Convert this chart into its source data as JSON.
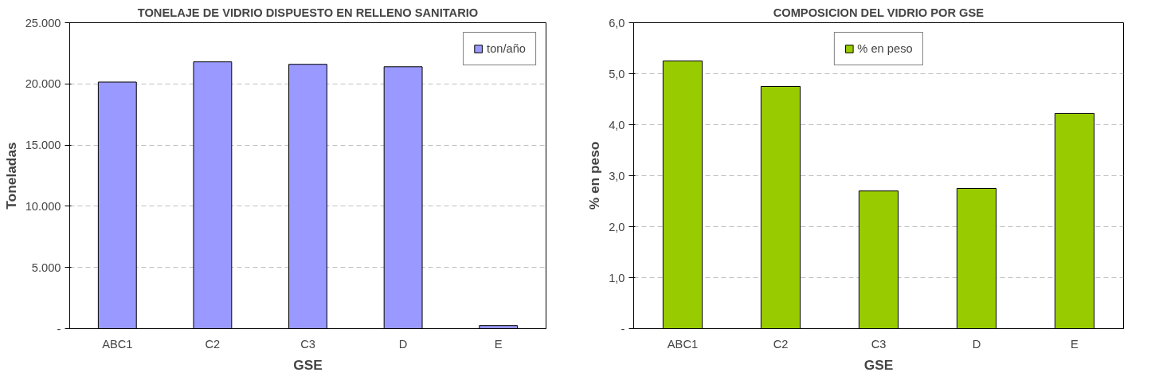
{
  "chart_data": [
    {
      "type": "bar",
      "title": "TONELAJE DE VIDRIO DISPUESTO EN RELLENO SANITARIO",
      "xlabel": "GSE",
      "ylabel": "Toneladas",
      "categories": [
        "ABC1",
        "C2",
        "C3",
        "D",
        "E"
      ],
      "series": [
        {
          "name": "ton/año",
          "color": "#9999ff",
          "values": [
            20150,
            21800,
            21600,
            21400,
            250
          ]
        }
      ],
      "ylim": [
        0,
        25000
      ],
      "yticks": [
        {
          "value": 0,
          "label": "-"
        },
        {
          "value": 5000,
          "label": "5.000"
        },
        {
          "value": 10000,
          "label": "10.000"
        },
        {
          "value": 15000,
          "label": "15.000"
        },
        {
          "value": 20000,
          "label": "20.000"
        },
        {
          "value": 25000,
          "label": "25.000"
        }
      ],
      "grid": "y",
      "legend": "top right"
    },
    {
      "type": "bar",
      "title": "COMPOSICION DEL VIDRIO POR GSE",
      "xlabel": "GSE",
      "ylabel": "% en peso",
      "categories": [
        "ABC1",
        "C2",
        "C3",
        "D",
        "E"
      ],
      "series": [
        {
          "name": "% en peso",
          "color": "#99cc00",
          "values": [
            5.25,
            4.75,
            2.7,
            2.75,
            4.22
          ]
        }
      ],
      "ylim": [
        0,
        6
      ],
      "yticks": [
        {
          "value": 0,
          "label": "-"
        },
        {
          "value": 1,
          "label": "1,0"
        },
        {
          "value": 2,
          "label": "2,0"
        },
        {
          "value": 3,
          "label": "3,0"
        },
        {
          "value": 4,
          "label": "4,0"
        },
        {
          "value": 5,
          "label": "5,0"
        },
        {
          "value": 6,
          "label": "6,0"
        }
      ],
      "grid": "y",
      "legend": "top"
    }
  ]
}
